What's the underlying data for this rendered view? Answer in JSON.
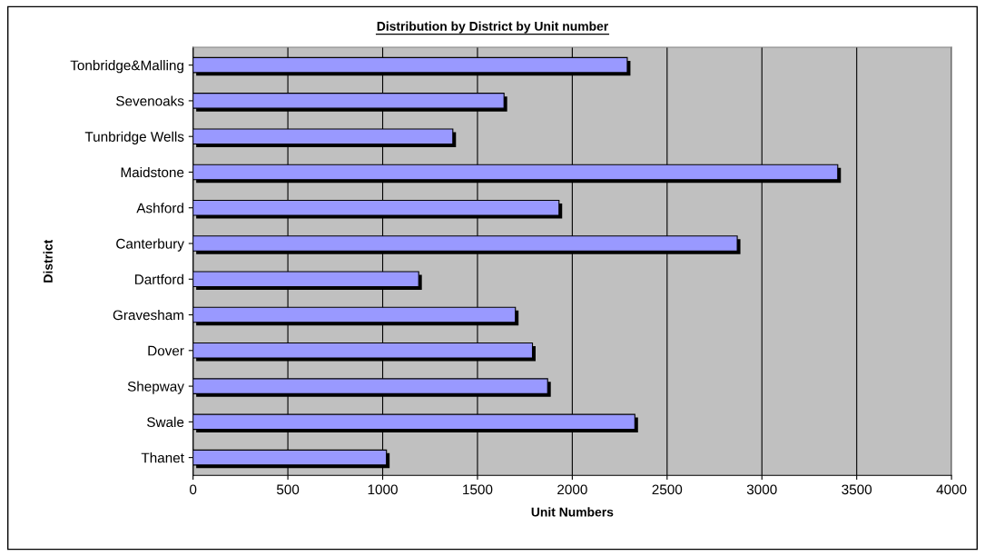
{
  "chart_data": {
    "type": "bar",
    "orientation": "horizontal",
    "title": "Distribution by District by Unit number",
    "xlabel": "Unit Numbers",
    "ylabel": "District",
    "categories": [
      "Tonbridge&Malling",
      "Sevenoaks",
      "Tunbridge Wells",
      "Maidstone",
      "Ashford",
      "Canterbury",
      "Dartford",
      "Gravesham",
      "Dover",
      "Shepway",
      "Swale",
      "Thanet"
    ],
    "values": [
      2290,
      1640,
      1370,
      3400,
      1930,
      2870,
      1190,
      1700,
      1790,
      1870,
      2330,
      1020
    ],
    "color": "#9999ff",
    "xlim": [
      0,
      4000
    ],
    "xticks": [
      0,
      500,
      1000,
      1500,
      2000,
      2500,
      3000,
      3500,
      4000
    ],
    "grid": "x",
    "legend": false
  }
}
